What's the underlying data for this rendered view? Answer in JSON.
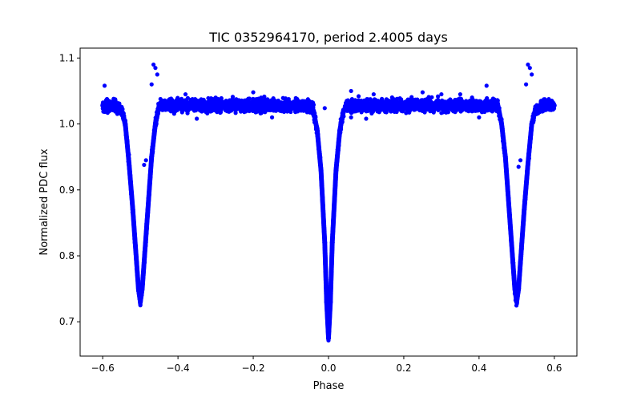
{
  "chart_data": {
    "type": "scatter",
    "title": "TIC 0352964170, period 2.4005 days",
    "xlabel": "Phase",
    "ylabel": "Normalized PDC flux",
    "xlim": [
      -0.66,
      0.66
    ],
    "ylim": [
      0.648,
      1.115
    ],
    "x_ticks": [
      -0.6,
      -0.4,
      -0.2,
      0.0,
      0.2,
      0.4,
      0.6
    ],
    "x_tick_labels": [
      "−0.6",
      "−0.4",
      "−0.2",
      "0.0",
      "0.2",
      "0.4",
      "0.6"
    ],
    "y_ticks": [
      0.7,
      0.8,
      0.9,
      1.0,
      1.1
    ],
    "y_tick_labels": [
      "0.7",
      "0.8",
      "0.9",
      "1.0",
      "1.1"
    ],
    "grid": false,
    "legend": "none",
    "series": [
      {
        "color": "#0000ff",
        "marker": "circle",
        "x_range": [
          -0.6,
          0.6
        ],
        "baseline_flux": 1.028,
        "phase_curve": [
          [
            -0.6,
            1.028
          ],
          [
            -0.57,
            1.027
          ],
          [
            -0.55,
            1.022
          ],
          [
            -0.54,
            1.0
          ],
          [
            -0.53,
            0.94
          ],
          [
            -0.52,
            0.87
          ],
          [
            -0.51,
            0.79
          ],
          [
            -0.505,
            0.75
          ],
          [
            -0.5,
            0.73
          ],
          [
            -0.495,
            0.75
          ],
          [
            -0.49,
            0.79
          ],
          [
            -0.48,
            0.87
          ],
          [
            -0.47,
            0.95
          ],
          [
            -0.46,
            1.0
          ],
          [
            -0.45,
            1.028
          ],
          [
            -0.05,
            1.028
          ],
          [
            -0.04,
            1.02
          ],
          [
            -0.03,
            0.99
          ],
          [
            -0.02,
            0.93
          ],
          [
            -0.01,
            0.82
          ],
          [
            -0.005,
            0.73
          ],
          [
            0.0,
            0.675
          ],
          [
            0.005,
            0.73
          ],
          [
            0.01,
            0.82
          ],
          [
            0.02,
            0.93
          ],
          [
            0.03,
            0.99
          ],
          [
            0.04,
            1.02
          ],
          [
            0.05,
            1.028
          ],
          [
            0.45,
            1.028
          ],
          [
            0.46,
            1.0
          ],
          [
            0.47,
            0.95
          ],
          [
            0.48,
            0.87
          ],
          [
            0.49,
            0.79
          ],
          [
            0.495,
            0.75
          ],
          [
            0.5,
            0.73
          ],
          [
            0.505,
            0.75
          ],
          [
            0.51,
            0.79
          ],
          [
            0.52,
            0.87
          ],
          [
            0.53,
            0.94
          ],
          [
            0.54,
            1.0
          ],
          [
            0.55,
            1.022
          ],
          [
            0.57,
            1.027
          ],
          [
            0.6,
            1.028
          ]
        ],
        "outliers": [
          [
            -0.595,
            1.058
          ],
          [
            -0.465,
            1.09
          ],
          [
            -0.46,
            1.085
          ],
          [
            -0.455,
            1.075
          ],
          [
            -0.47,
            1.06
          ],
          [
            -0.485,
            0.945
          ],
          [
            -0.49,
            0.938
          ],
          [
            -0.01,
            1.024
          ],
          [
            0.06,
            1.05
          ],
          [
            0.08,
            1.042
          ],
          [
            0.12,
            1.045
          ],
          [
            0.25,
            1.048
          ],
          [
            0.3,
            1.045
          ],
          [
            0.35,
            1.045
          ],
          [
            0.42,
            1.058
          ],
          [
            0.53,
            1.09
          ],
          [
            0.535,
            1.085
          ],
          [
            0.54,
            1.075
          ],
          [
            0.525,
            1.06
          ],
          [
            0.51,
            0.945
          ],
          [
            0.505,
            0.935
          ],
          [
            -0.2,
            1.048
          ],
          [
            -0.3,
            1.04
          ],
          [
            -0.38,
            1.045
          ],
          [
            0.06,
            1.01
          ],
          [
            0.1,
            1.008
          ],
          [
            0.4,
            1.01
          ],
          [
            -0.15,
            1.01
          ],
          [
            -0.35,
            1.008
          ]
        ]
      }
    ]
  }
}
